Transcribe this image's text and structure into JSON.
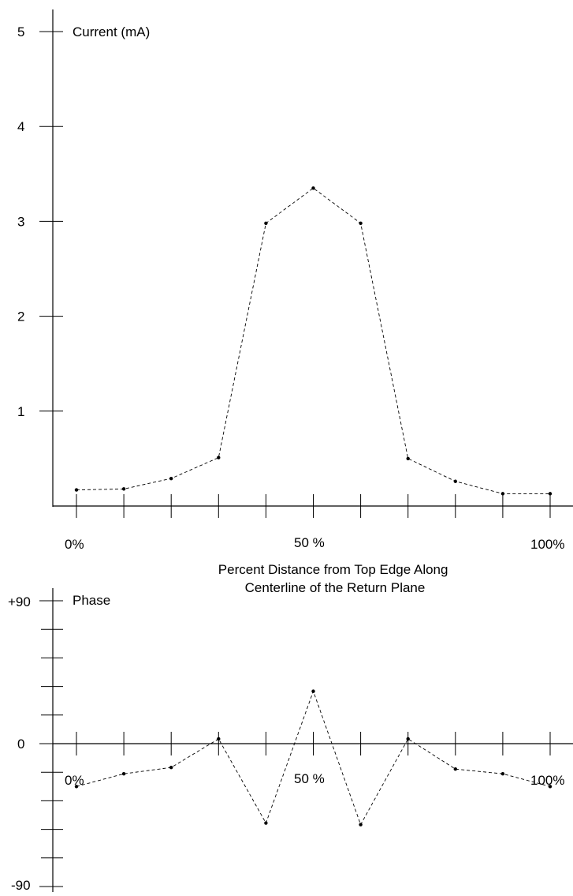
{
  "chart_data": [
    {
      "type": "line",
      "title": "Current (mA)",
      "x": [
        0,
        10,
        20,
        30,
        40,
        50,
        60,
        70,
        80,
        90,
        100
      ],
      "series": [
        {
          "values": [
            0.17,
            0.18,
            0.29,
            0.51,
            2.98,
            3.35,
            2.98,
            0.5,
            0.26,
            0.13,
            0.13
          ]
        }
      ],
      "ylim": [
        0,
        5
      ],
      "y_ticks": [
        "1",
        "2",
        "3",
        "4",
        "5"
      ],
      "x_tick_labels": [
        "0%",
        "50 %",
        "100%"
      ],
      "xlabel": "Percent Distance from Top Edge Along Centerline of the Return Plane",
      "grid": false
    },
    {
      "type": "line",
      "title": "Phase",
      "x": [
        0,
        10,
        20,
        30,
        40,
        50,
        60,
        70,
        80,
        90,
        100
      ],
      "series": [
        {
          "values": [
            -27,
            -19,
            -15,
            3,
            -50,
            33,
            -51,
            3,
            -16,
            -19,
            -27
          ]
        }
      ],
      "ylim": [
        -90,
        90
      ],
      "y_ticks": [
        "+90",
        "0",
        "-90"
      ],
      "x_tick_labels": [
        "0%",
        "50 %",
        "100%"
      ],
      "grid": false
    }
  ]
}
